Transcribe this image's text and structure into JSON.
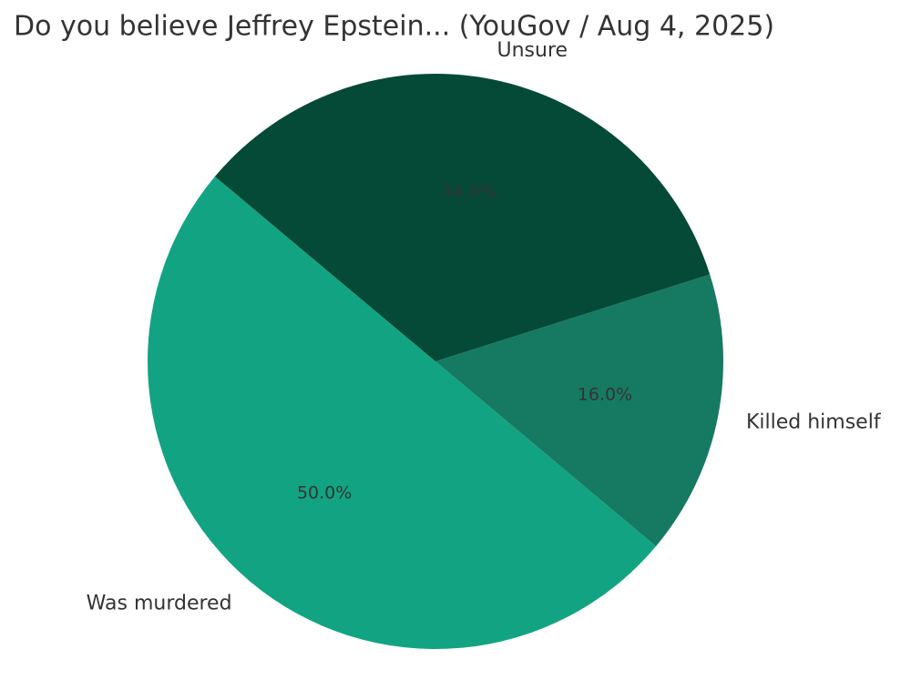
{
  "chart_data": {
    "type": "pie",
    "title": "Do you believe Jeffrey Epstein... (YouGov / Aug 4, 2025)",
    "categories": [
      "Was murdered",
      "Killed himself",
      "Unsure"
    ],
    "values": [
      50,
      16,
      34
    ],
    "value_labels": [
      "50.0%",
      "16.0%",
      "34.0%"
    ],
    "colors": [
      "#12a482",
      "#167a62",
      "#044a37"
    ]
  }
}
